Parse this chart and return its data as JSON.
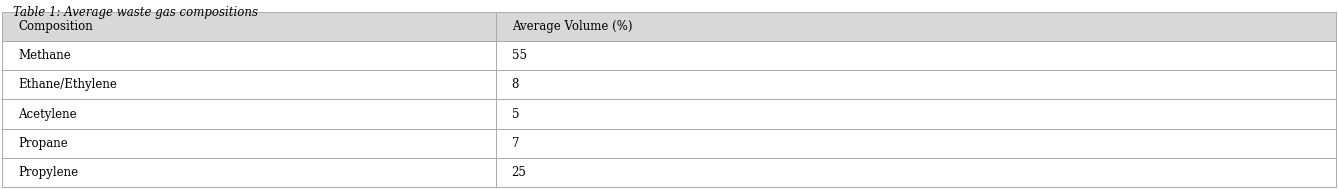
{
  "title": "Table 1: Average waste gas compositions",
  "col_headers": [
    "Composition",
    "Average Volume (%)"
  ],
  "rows": [
    [
      "Methane",
      "55"
    ],
    [
      "Ethane/Ethylene",
      "8"
    ],
    [
      "Acetylene",
      "5"
    ],
    [
      "Propane",
      "7"
    ],
    [
      "Propylene",
      "25"
    ]
  ],
  "col_split": 0.37,
  "background_color": "#ffffff",
  "header_bg": "#d8d8d8",
  "row_bg_even": "#ffffff",
  "row_bg_odd": "#ffffff",
  "border_color": "#aaaaaa",
  "text_color": "#000000",
  "title_fontsize": 8.5,
  "cell_fontsize": 8.5,
  "fig_width": 13.38,
  "fig_height": 1.89,
  "dpi": 100
}
